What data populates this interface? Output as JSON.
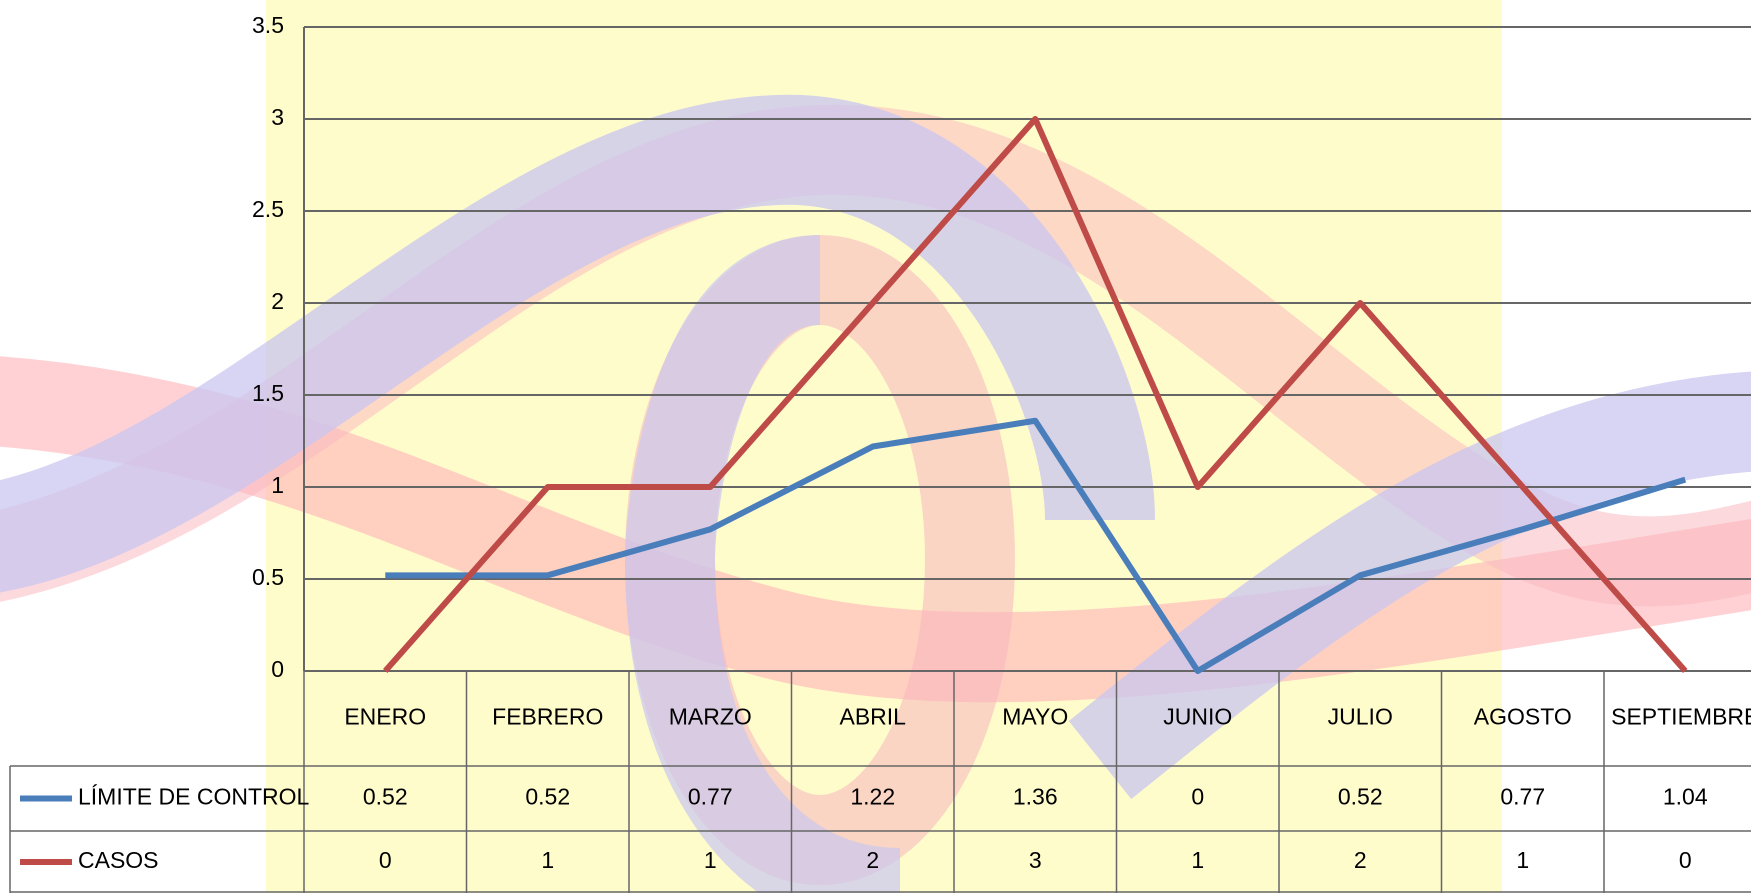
{
  "chart_data": {
    "type": "line",
    "categories": [
      "ENERO",
      "FEBRERO",
      "MARZO",
      "ABRIL",
      "MAYO",
      "JUNIO",
      "JULIO",
      "AGOSTO",
      "SEPTIEMBRE"
    ],
    "series": [
      {
        "name": "LÍMITE DE CONTROL",
        "color": "#4a7ebb",
        "values": [
          0.52,
          0.52,
          0.77,
          1.22,
          1.36,
          0,
          0.52,
          0.77,
          1.04
        ]
      },
      {
        "name": "CASOS",
        "color": "#be4b48",
        "values": [
          0,
          1,
          1,
          2,
          3,
          1,
          2,
          1,
          0
        ]
      }
    ],
    "ylim": [
      0,
      3.5
    ],
    "yticks": [
      0,
      0.5,
      1,
      1.5,
      2,
      2.5,
      3,
      3.5
    ],
    "grid": true
  }
}
